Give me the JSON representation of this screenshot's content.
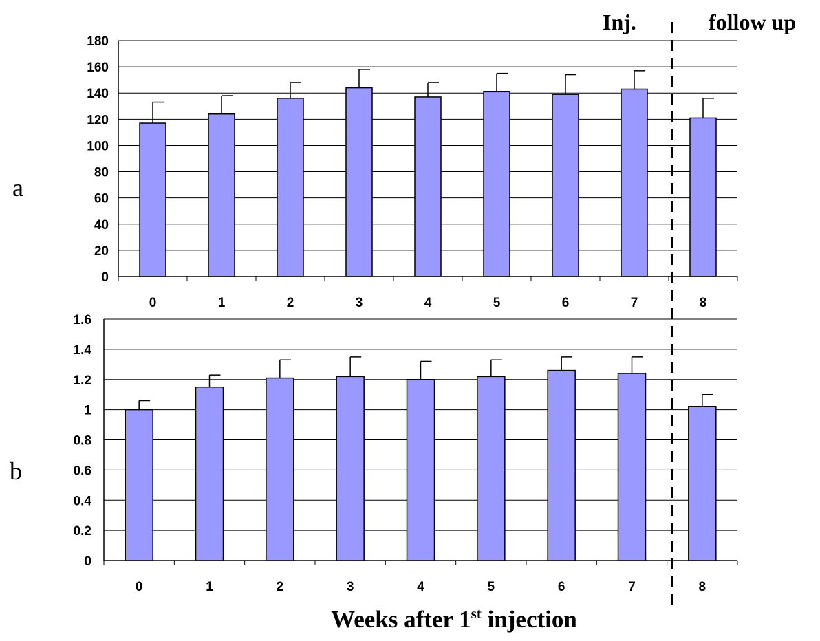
{
  "annotations": {
    "inj_label": "Inj.",
    "follow_up_label": "follow up"
  },
  "xlabel": {
    "prefix": "Weeks after 1",
    "superscript": "st",
    "suffix": " injection"
  },
  "colors": {
    "bar_fill": "#9999ff",
    "bar_stroke": "#000000",
    "grid": "#000000"
  },
  "chart_data": [
    {
      "type": "bar",
      "panel_label": "a",
      "categories": [
        "0",
        "1",
        "2",
        "3",
        "4",
        "5",
        "6",
        "7",
        "8"
      ],
      "values": [
        117,
        124,
        136,
        144,
        137,
        141,
        139,
        143,
        121
      ],
      "error_upper": [
        133,
        138,
        148,
        158,
        148,
        155,
        154,
        157,
        136
      ],
      "ylim": [
        0,
        180
      ],
      "yticks": [
        "0",
        "20",
        "40",
        "60",
        "80",
        "100",
        "120",
        "140",
        "160",
        "180"
      ],
      "title": "",
      "xlabel": "",
      "ylabel": "",
      "grid": true
    },
    {
      "type": "bar",
      "panel_label": "b",
      "categories": [
        "0",
        "1",
        "2",
        "3",
        "4",
        "5",
        "6",
        "7",
        "8"
      ],
      "values": [
        1.0,
        1.15,
        1.21,
        1.22,
        1.2,
        1.22,
        1.26,
        1.24,
        1.02
      ],
      "error_upper": [
        1.06,
        1.23,
        1.33,
        1.35,
        1.32,
        1.33,
        1.35,
        1.35,
        1.1
      ],
      "ylim": [
        0,
        1.6
      ],
      "yticks": [
        "0",
        "0.2",
        "0.4",
        "0.6",
        "0.8",
        "1",
        "1.2",
        "1.4",
        "1.6"
      ],
      "title": "",
      "xlabel": "Weeks after 1st injection",
      "ylabel": "",
      "grid": true
    }
  ]
}
